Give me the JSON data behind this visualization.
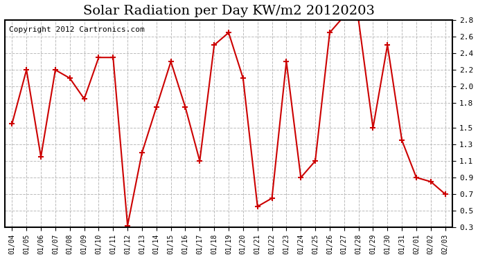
{
  "title": "Solar Radiation per Day KW/m2 20120203",
  "copyright_text": "Copyright 2012 Cartronics.com",
  "dates": [
    "01/04",
    "01/05",
    "01/06",
    "01/07",
    "01/08",
    "01/09",
    "01/10",
    "01/11",
    "01/12",
    "01/13",
    "01/14",
    "01/15",
    "01/16",
    "01/17",
    "01/18",
    "01/19",
    "01/20",
    "01/21",
    "01/22",
    "01/23",
    "01/24",
    "01/25",
    "01/26",
    "01/27",
    "01/28",
    "01/29",
    "01/30",
    "01/31",
    "02/01",
    "02/02",
    "02/03"
  ],
  "values": [
    1.55,
    2.2,
    1.15,
    2.2,
    2.1,
    1.85,
    2.35,
    2.35,
    0.32,
    1.2,
    1.75,
    2.3,
    1.75,
    1.1,
    2.5,
    2.65,
    2.1,
    0.55,
    0.65,
    2.3,
    0.9,
    1.1,
    2.65,
    2.85,
    2.8,
    1.5,
    2.5,
    1.35,
    0.9,
    0.85,
    0.7
  ],
  "line_color": "#cc0000",
  "marker_color": "#cc0000",
  "bg_color": "#ffffff",
  "plot_bg_color": "#ffffff",
  "grid_color": "#bbbbbb",
  "ylim_min": 0.3,
  "ylim_max": 2.8,
  "yticks": [
    0.3,
    0.5,
    0.7,
    0.9,
    1.1,
    1.3,
    1.5,
    1.8,
    2.0,
    2.2,
    2.4,
    2.6,
    2.8
  ],
  "title_fontsize": 14,
  "copyright_fontsize": 8,
  "linewidth": 1.5,
  "markersize": 6,
  "markeredgewidth": 1.5
}
